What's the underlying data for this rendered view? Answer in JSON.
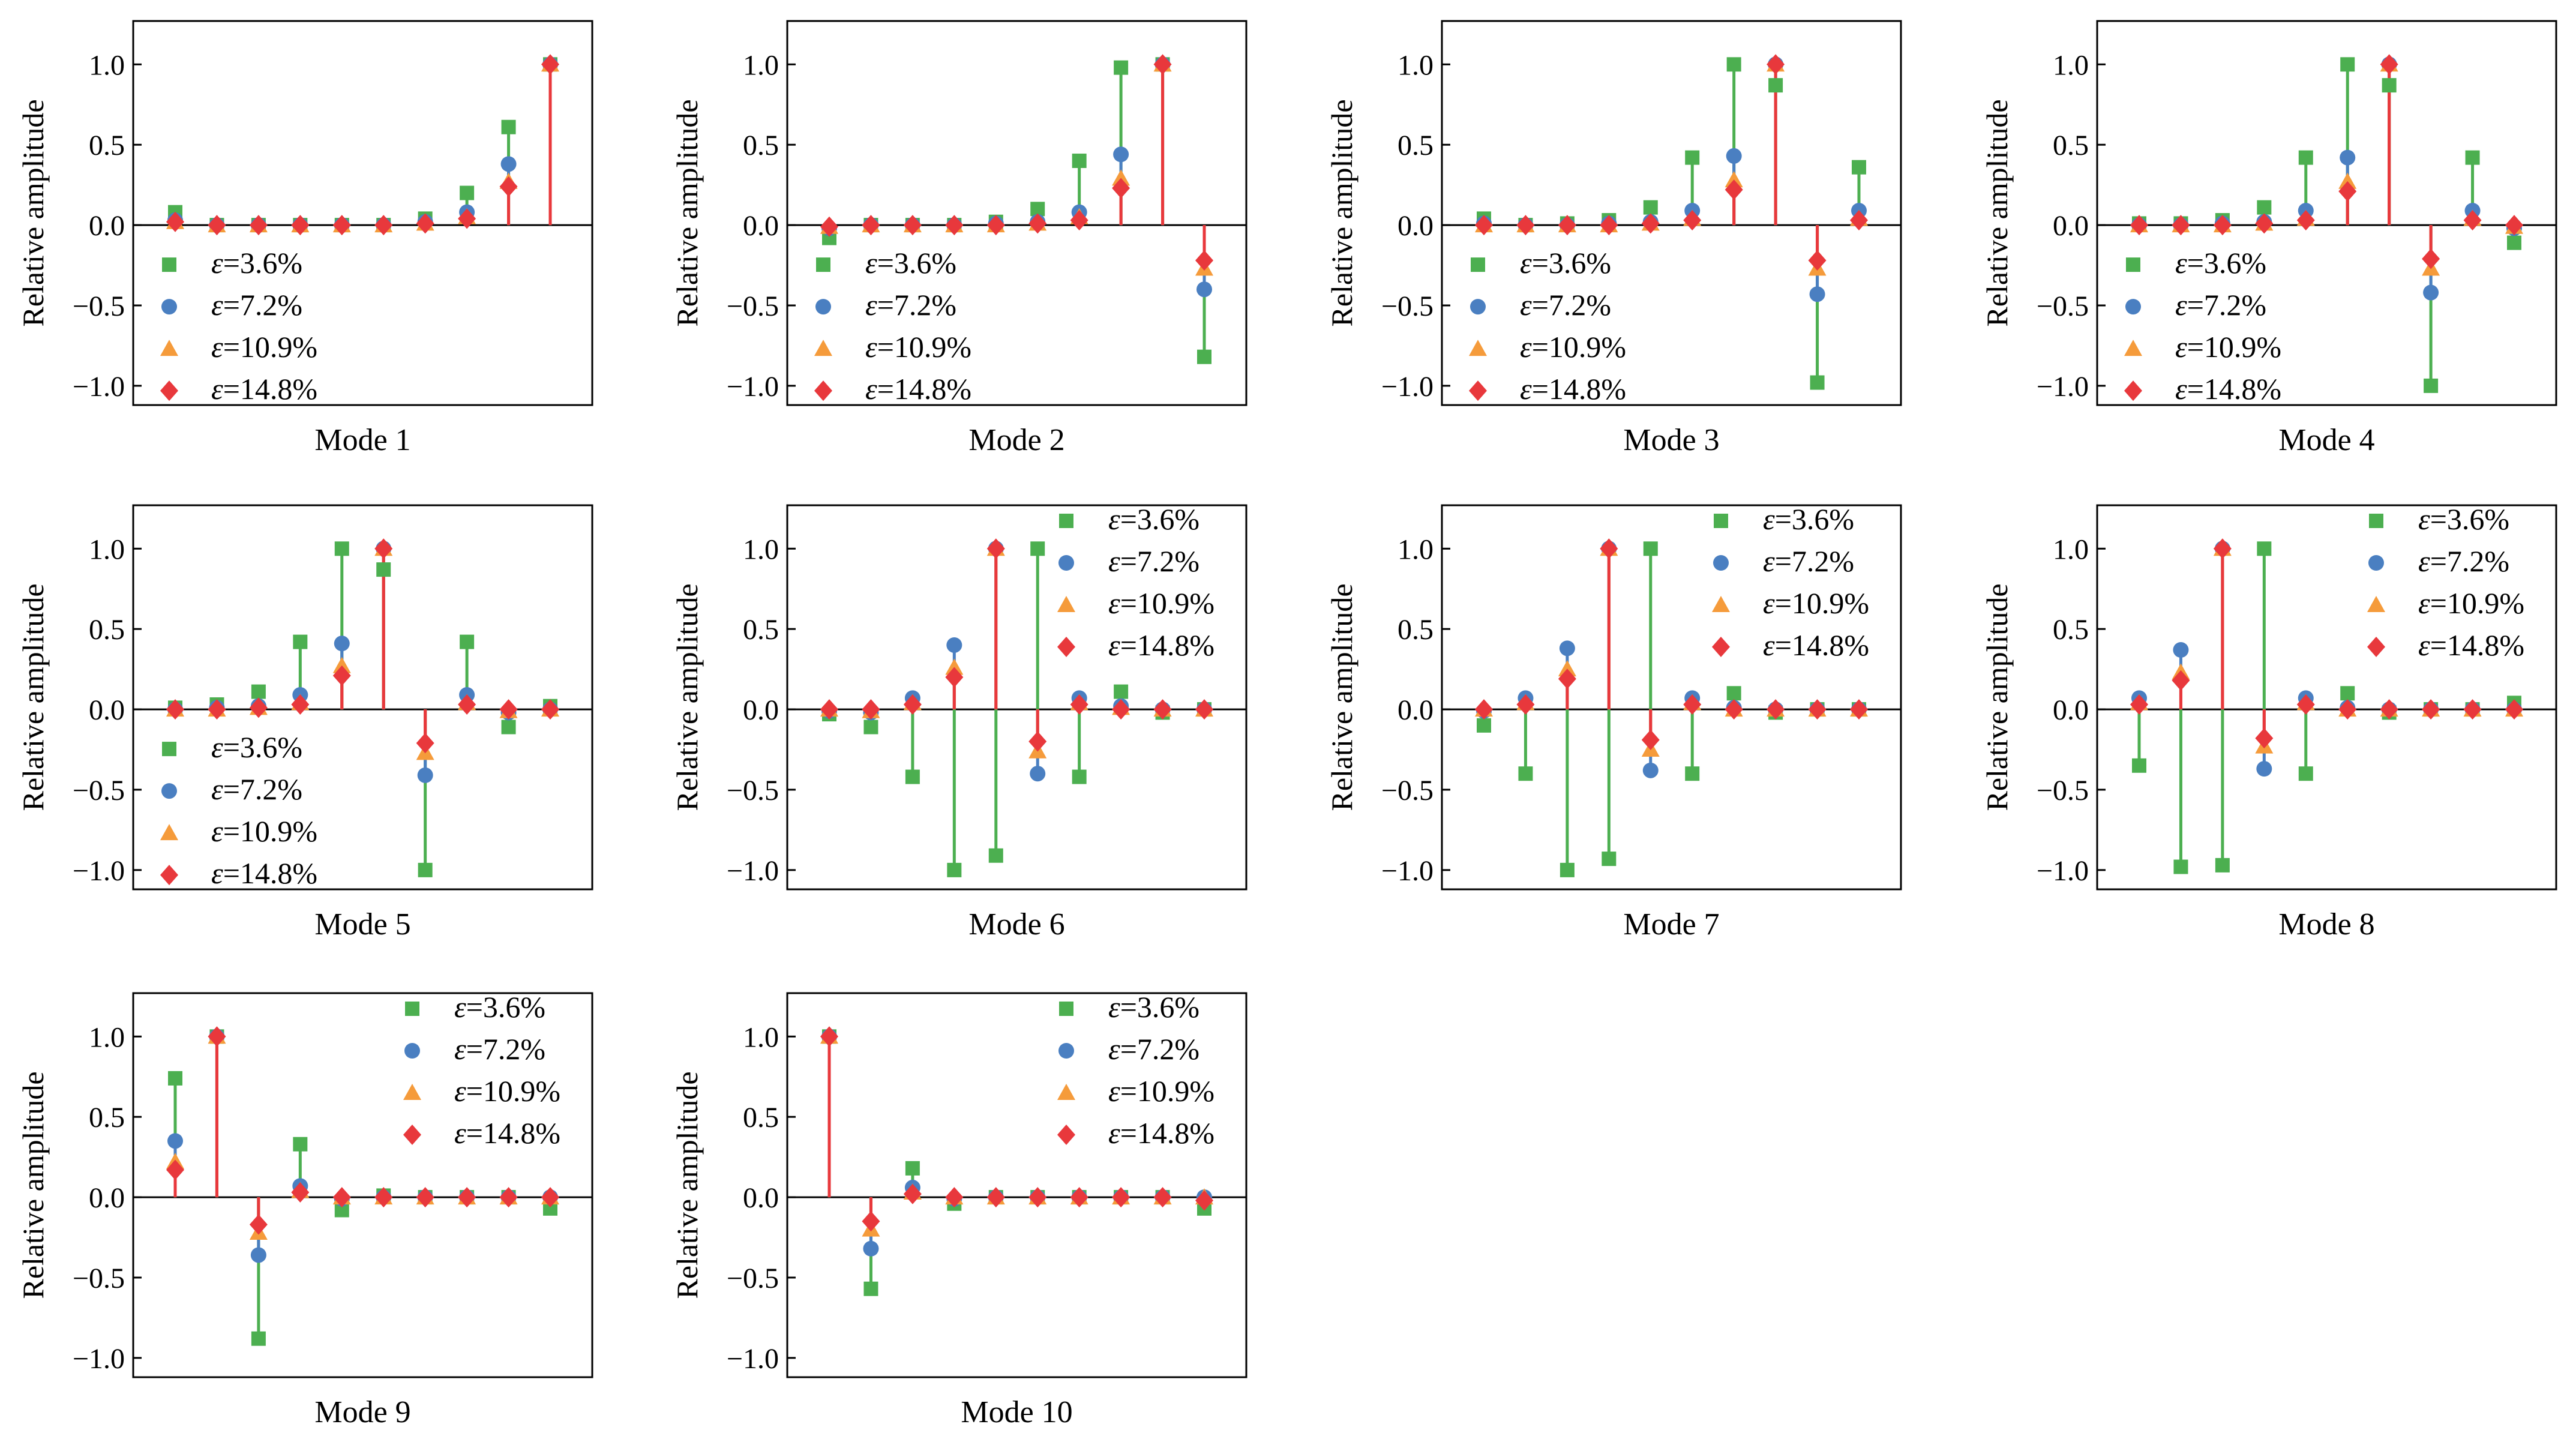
{
  "figure": {
    "legend_prefix": "ε",
    "shared": {
      "type": "scatter-stem",
      "ylabel": "Relative amplitude",
      "ylim": [
        -1.12,
        1.27
      ],
      "yticks": [
        "1.0",
        "0.5",
        "0.0",
        "−0.5",
        "−1.0"
      ],
      "ytick_values": [
        1.0,
        0.5,
        0.0,
        -0.5,
        -1.0
      ],
      "n_points": 10,
      "grid": false
    },
    "series_style": [
      {
        "name": "=3.6%",
        "color": "#4caf50",
        "marker": "square"
      },
      {
        "name": "=7.2%",
        "color": "#4a7fc1",
        "marker": "circle"
      },
      {
        "name": "=10.9%",
        "color": "#f59b3b",
        "marker": "triangle"
      },
      {
        "name": "=14.8%",
        "color": "#e8383c",
        "marker": "diamond"
      }
    ]
  },
  "chart_data": [
    {
      "title": "Mode 1",
      "legend_position": "lower-left",
      "series": [
        {
          "name": "=3.6%",
          "values": [
            0.08,
            0,
            0,
            0,
            0,
            0,
            0.04,
            0.2,
            0.61,
            1.0
          ]
        },
        {
          "name": "=7.2%",
          "values": [
            0.03,
            0,
            0,
            0,
            0,
            0,
            0.02,
            0.08,
            0.38,
            1.0
          ]
        },
        {
          "name": "=10.9%",
          "values": [
            0.02,
            0,
            0,
            0,
            0,
            0,
            0.01,
            0.05,
            0.27,
            1.0
          ]
        },
        {
          "name": "=14.8%",
          "values": [
            0.02,
            0,
            0,
            0,
            0,
            0,
            0.01,
            0.04,
            0.24,
            1.0
          ]
        }
      ]
    },
    {
      "title": "Mode 2",
      "legend_position": "lower-left",
      "series": [
        {
          "name": "=3.6%",
          "values": [
            -0.08,
            0,
            0,
            0,
            0.02,
            0.1,
            0.4,
            0.98,
            1.0,
            -0.82
          ]
        },
        {
          "name": "=7.2%",
          "values": [
            -0.02,
            0,
            0,
            0,
            0.01,
            0.02,
            0.08,
            0.44,
            1.0,
            -0.4
          ]
        },
        {
          "name": "=10.9%",
          "values": [
            -0.01,
            0,
            0,
            0,
            0,
            0.01,
            0.05,
            0.29,
            1.0,
            -0.27
          ]
        },
        {
          "name": "=14.8%",
          "values": [
            -0.01,
            0,
            0,
            0,
            0,
            0.01,
            0.03,
            0.23,
            1.0,
            -0.22
          ]
        }
      ]
    },
    {
      "title": "Mode 3",
      "legend_position": "lower-left",
      "series": [
        {
          "name": "=3.6%",
          "values": [
            0.04,
            0,
            0.01,
            0.03,
            0.11,
            0.42,
            1.0,
            0.87,
            -0.98,
            0.36
          ]
        },
        {
          "name": "=7.2%",
          "values": [
            0.01,
            0,
            0,
            0.01,
            0.02,
            0.09,
            0.43,
            1.0,
            -0.43,
            0.09
          ]
        },
        {
          "name": "=10.9%",
          "values": [
            0,
            0,
            0,
            0,
            0.01,
            0.04,
            0.28,
            1.0,
            -0.27,
            0.04
          ]
        },
        {
          "name": "=14.8%",
          "values": [
            0,
            0,
            0,
            0,
            0.01,
            0.03,
            0.22,
            1.0,
            -0.22,
            0.03
          ]
        }
      ]
    },
    {
      "title": "Mode 4",
      "legend_position": "lower-left",
      "series": [
        {
          "name": "=3.6%",
          "values": [
            0.01,
            0.01,
            0.03,
            0.11,
            0.42,
            1.0,
            0.87,
            -1.0,
            0.42,
            -0.11
          ]
        },
        {
          "name": "=7.2%",
          "values": [
            0,
            0,
            0.01,
            0.02,
            0.09,
            0.42,
            1.0,
            -0.42,
            0.09,
            -0.02
          ]
        },
        {
          "name": "=10.9%",
          "values": [
            0,
            0,
            0,
            0.01,
            0.04,
            0.27,
            1.0,
            -0.27,
            0.04,
            -0.01
          ]
        },
        {
          "name": "=14.8%",
          "values": [
            0,
            0,
            0,
            0.01,
            0.03,
            0.21,
            1.0,
            -0.21,
            0.03,
            0
          ]
        }
      ]
    },
    {
      "title": "Mode 5",
      "legend_position": "lower-left",
      "series": [
        {
          "name": "=3.6%",
          "values": [
            0.01,
            0.03,
            0.11,
            0.42,
            1.0,
            0.87,
            -1.0,
            0.42,
            -0.11,
            0.02
          ]
        },
        {
          "name": "=7.2%",
          "values": [
            0,
            0.01,
            0.02,
            0.09,
            0.41,
            1.0,
            -0.41,
            0.09,
            -0.02,
            0
          ]
        },
        {
          "name": "=10.9%",
          "values": [
            0,
            0,
            0.01,
            0.04,
            0.27,
            1.0,
            -0.27,
            0.04,
            -0.01,
            0
          ]
        },
        {
          "name": "=14.8%",
          "values": [
            0,
            0,
            0.01,
            0.03,
            0.21,
            1.0,
            -0.21,
            0.03,
            0,
            0
          ]
        }
      ]
    },
    {
      "title": "Mode 6",
      "legend_position": "upper-right",
      "series": [
        {
          "name": "=3.6%",
          "values": [
            -0.03,
            -0.11,
            -0.42,
            -1.0,
            -0.91,
            1.0,
            -0.42,
            0.11,
            -0.02,
            0
          ]
        },
        {
          "name": "=7.2%",
          "values": [
            -0.01,
            -0.02,
            0.07,
            0.4,
            1.0,
            -0.4,
            0.07,
            0.02,
            0,
            0
          ]
        },
        {
          "name": "=10.9%",
          "values": [
            0,
            -0.01,
            0.04,
            0.26,
            1.0,
            -0.26,
            0.04,
            0.01,
            0,
            0
          ]
        },
        {
          "name": "=14.8%",
          "values": [
            0,
            0,
            0.03,
            0.2,
            1.0,
            -0.2,
            0.03,
            0,
            0,
            0
          ]
        }
      ]
    },
    {
      "title": "Mode 7",
      "legend_position": "upper-right",
      "series": [
        {
          "name": "=3.6%",
          "values": [
            -0.1,
            -0.4,
            -1.0,
            -0.93,
            1.0,
            -0.4,
            0.1,
            -0.02,
            0,
            0
          ]
        },
        {
          "name": "=7.2%",
          "values": [
            -0.01,
            0.07,
            0.38,
            1.0,
            -0.38,
            0.07,
            0.01,
            0,
            0,
            0
          ]
        },
        {
          "name": "=10.9%",
          "values": [
            0,
            0.04,
            0.25,
            1.0,
            -0.25,
            0.04,
            0,
            0,
            0,
            0
          ]
        },
        {
          "name": "=14.8%",
          "values": [
            0,
            0.03,
            0.19,
            1.0,
            -0.19,
            0.03,
            0,
            0,
            0,
            0
          ]
        }
      ]
    },
    {
      "title": "Mode 8",
      "legend_position": "upper-right",
      "series": [
        {
          "name": "=3.6%",
          "values": [
            -0.35,
            -0.98,
            -0.97,
            1.0,
            -0.4,
            0.1,
            -0.02,
            0,
            0,
            0.04
          ]
        },
        {
          "name": "=7.2%",
          "values": [
            0.07,
            0.37,
            1.0,
            -0.37,
            0.07,
            0.01,
            0,
            0,
            0,
            0
          ]
        },
        {
          "name": "=10.9%",
          "values": [
            0.04,
            0.23,
            1.0,
            -0.23,
            0.04,
            0,
            0,
            0,
            0,
            0
          ]
        },
        {
          "name": "=14.8%",
          "values": [
            0.03,
            0.18,
            1.0,
            -0.18,
            0.03,
            0,
            0,
            0,
            0,
            0
          ]
        }
      ]
    },
    {
      "title": "Mode 9",
      "legend_position": "upper-right",
      "series": [
        {
          "name": "=3.6%",
          "values": [
            0.74,
            1.0,
            -0.88,
            0.33,
            -0.08,
            0.01,
            0,
            0,
            0,
            -0.07
          ]
        },
        {
          "name": "=7.2%",
          "values": [
            0.35,
            1.0,
            -0.36,
            0.07,
            -0.01,
            0,
            0,
            0,
            0,
            0
          ]
        },
        {
          "name": "=10.9%",
          "values": [
            0.22,
            1.0,
            -0.22,
            0.04,
            0,
            0,
            0,
            0,
            0,
            0
          ]
        },
        {
          "name": "=14.8%",
          "values": [
            0.17,
            1.0,
            -0.17,
            0.03,
            0,
            0,
            0,
            0,
            0,
            0
          ]
        }
      ]
    },
    {
      "title": "Mode 10",
      "legend_position": "upper-right",
      "series": [
        {
          "name": "=3.6%",
          "values": [
            1.0,
            -0.57,
            0.18,
            -0.04,
            0,
            0,
            0,
            0,
            0,
            -0.07
          ]
        },
        {
          "name": "=7.2%",
          "values": [
            1.0,
            -0.32,
            0.06,
            -0.01,
            0,
            0,
            0,
            0,
            0,
            0
          ]
        },
        {
          "name": "=10.9%",
          "values": [
            1.0,
            -0.2,
            0.03,
            0,
            0,
            0,
            0,
            0,
            0,
            0
          ]
        },
        {
          "name": "=14.8%",
          "values": [
            1.0,
            -0.15,
            0.02,
            0,
            0,
            0,
            0,
            0,
            0,
            -0.02
          ]
        }
      ]
    }
  ]
}
